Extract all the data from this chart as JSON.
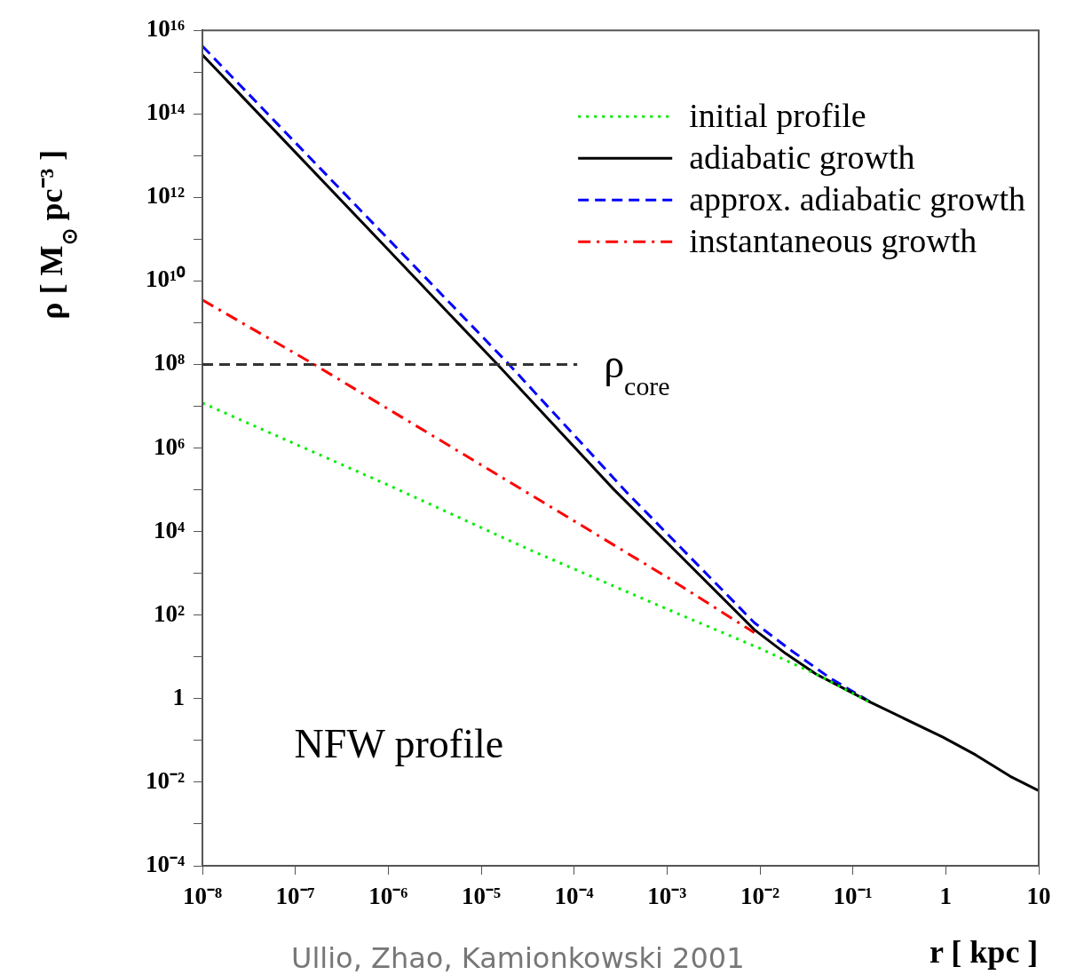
{
  "chart_data": {
    "type": "line",
    "xlabel": "r [ kpc ]",
    "ylabel": "ρ [ M$_{⊙}$ pc⁻³ ]",
    "log": "xy",
    "xlim": [
      1e-08,
      10
    ],
    "ylim": [
      0.0001,
      1e+16
    ],
    "xticks": [
      {
        "value": 1e-08,
        "label": "10⁻⁸"
      },
      {
        "value": 1e-07,
        "label": "10⁻⁷"
      },
      {
        "value": 1e-06,
        "label": "10⁻⁶"
      },
      {
        "value": 1e-05,
        "label": "10⁻⁵"
      },
      {
        "value": 0.0001,
        "label": "10⁻⁴"
      },
      {
        "value": 0.001,
        "label": "10⁻³"
      },
      {
        "value": 0.01,
        "label": "10⁻²"
      },
      {
        "value": 0.1,
        "label": "10⁻¹"
      },
      1,
      10
    ],
    "yticks": [
      {
        "value": 1e+16,
        "label": "10¹⁶"
      },
      {
        "value": 1000000000000000.0,
        "label": null
      },
      {
        "value": 100000000000000.0,
        "label": "10¹⁴"
      },
      {
        "value": 10000000000000.0,
        "label": null
      },
      {
        "value": 1000000000000.0,
        "label": "10¹²"
      },
      {
        "value": 100000000000.0,
        "label": null
      },
      {
        "value": 10000000000.0,
        "label": "10¹⁰"
      },
      {
        "value": 1000000000.0,
        "label": null
      },
      {
        "value": 100000000.0,
        "label": "10⁸"
      },
      {
        "value": 10000000.0,
        "label": null
      },
      {
        "value": 1000000.0,
        "label": "10⁶"
      },
      {
        "value": 100000.0,
        "label": null
      },
      {
        "value": 10000.0,
        "label": "10⁴"
      },
      {
        "value": 1000.0,
        "label": null
      },
      {
        "value": 100.0,
        "label": "10²"
      },
      {
        "value": 10,
        "label": null
      },
      1,
      {
        "value": 0.1,
        "label": null
      },
      {
        "value": 0.01,
        "label": "10⁻²"
      },
      {
        "value": 0.001,
        "label": null
      },
      {
        "value": 0.0001,
        "label": "10⁻⁴"
      }
    ],
    "grid": false,
    "legend": "top right",
    "series": [
      {
        "name": "initial profile",
        "color": "#00ee00",
        "line_style": "dotted",
        "x": [
          1e-08,
          1e-06,
          3.6e-05,
          0.001,
          0.01,
          0.044,
          0.15
        ],
        "values": [
          12000000.0,
          130000.0,
          3400.0,
          140,
          16,
          3.5,
          0.83
        ]
      },
      {
        "name": "adiabatic growth",
        "color": "#000000",
        "line_style": "solid",
        "x": [
          1e-08,
          1e-06,
          1.5e-05,
          0.00027,
          0.0087,
          0.019,
          0.04,
          0.155,
          0.93,
          2.1,
          4.9,
          10
        ],
        "values": [
          2600000000000000.0,
          56000000000.0,
          100000000.0,
          100000.0,
          45,
          12,
          3.9,
          0.82,
          0.12,
          0.045,
          0.014,
          0.0063
        ]
      },
      {
        "name": "approx. adiabatic growth",
        "color": "#0000ff",
        "line_style": "dashed",
        "x": [
          1e-08,
          2e-05,
          0.00038,
          0.0087,
          0.022,
          0.056,
          0.155
        ],
        "values": [
          4200000000000000.0,
          100000000.0,
          81000.0,
          66,
          14,
          3.2,
          0.83
        ]
      },
      {
        "name": "instantaneous growth",
        "color": "#ff0000",
        "line_style": "dashdot",
        "x": [
          1e-08,
          1.6e-07,
          4.3e-05,
          0.00105,
          0.0087
        ],
        "values": [
          3500000000.0,
          100000000.0,
          56000.0,
          760,
          38
        ]
      }
    ],
    "ref_lines": [
      {
        "axis": "y",
        "value": 100000000.0,
        "label": "ρ$_{core}$",
        "color": "#333333",
        "line_style": "dashed"
      }
    ],
    "annotations": [
      "NFW profile",
      "Ullio, Zhao, Kamionkowski 2001"
    ]
  }
}
